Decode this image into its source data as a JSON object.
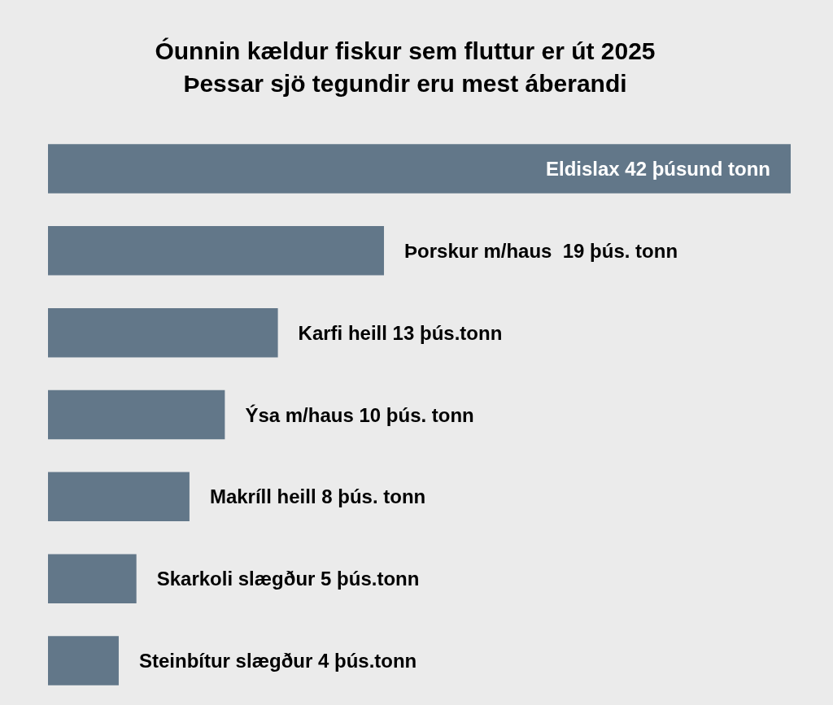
{
  "chart_data": {
    "type": "bar",
    "orientation": "horizontal",
    "title": "Óunnin kældur fiskur sem fluttur er út 2025",
    "subtitle": "Þessar sjö tegundir eru mest áberandi",
    "categories": [
      null,
      null,
      null,
      null,
      null,
      null,
      null
    ],
    "values": [
      42,
      19,
      13,
      10,
      8,
      5,
      4
    ],
    "value_labels": [
      "Eldislax 42 þúsund tonn",
      "Þorskur m/haus  19 þús. tonn",
      "Karfi heill 13 þús.tonn",
      "Ýsa m/haus 10 þús. tonn",
      "Makríll heill 8 þús. tonn",
      "Skarkoli slægður 5 þús.tonn",
      "Steinbítur slægður 4 þús.tonn"
    ],
    "color": "#627789"
  }
}
